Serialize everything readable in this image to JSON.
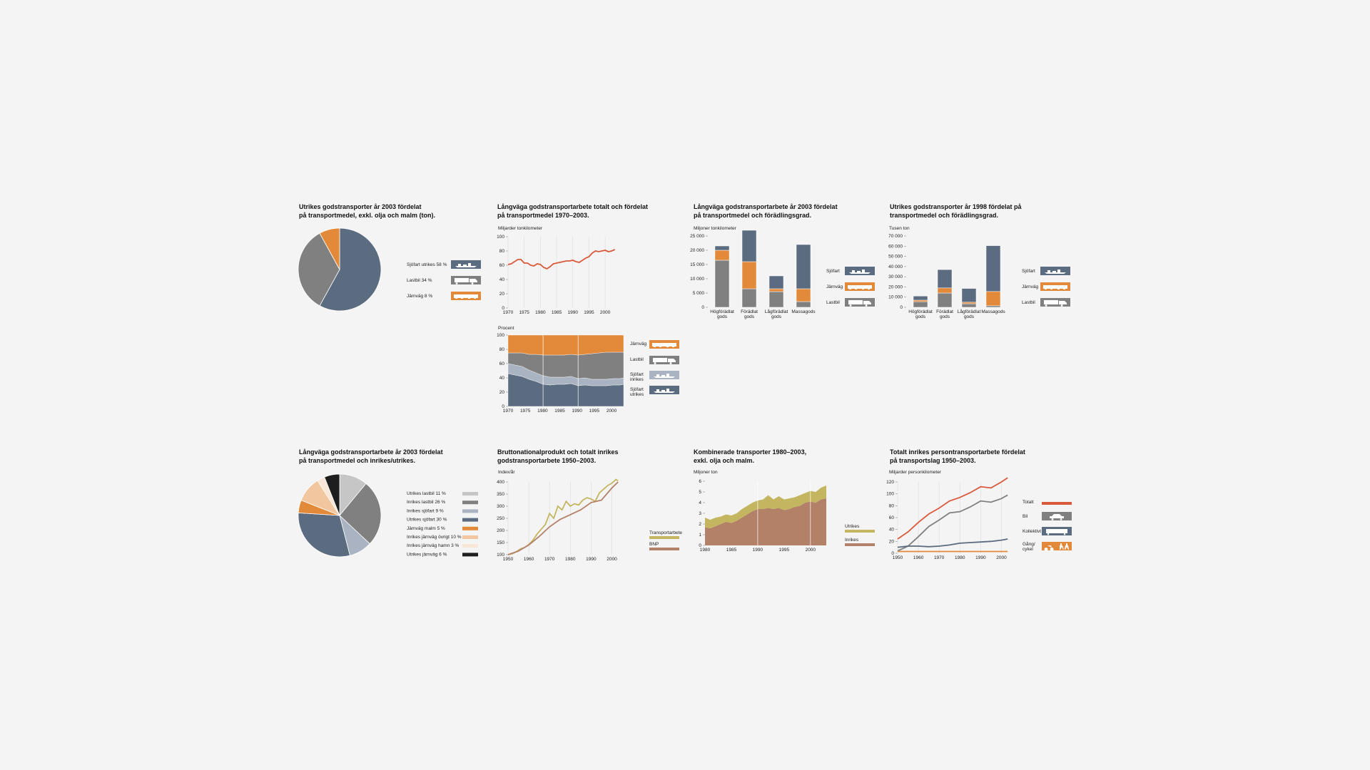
{
  "colors": {
    "navy": "#5b6b80",
    "gray": "#808080",
    "orange": "#e3893a",
    "lightblue": "#aab3c2",
    "red": "#d95a3a",
    "olive": "#c4b660",
    "brown": "#b38068",
    "black": "#1e1e1e",
    "lightgray": "#c6c6c6",
    "peach": "#f2c7a0",
    "cream": "#f8e6d6",
    "vlight": "#dcdcdc"
  },
  "icons": {
    "ship": "ship-icon",
    "truck": "truck-icon",
    "train": "train-icon",
    "car": "car-icon",
    "bus": "bus-icon",
    "bike": "bike-walk-icon"
  },
  "chart_data": [
    {
      "id": "c1",
      "type": "pie",
      "title": "Utrikes godstransporter år 2003 fördelat\npå transportmedel, exkl. olja och malm (ton).",
      "slices": [
        {
          "label": "Sjöfart utrikes 58 %",
          "value": 58,
          "color": "#5b6b80",
          "icon": "ship-icon"
        },
        {
          "label": "Lastbil 34 %",
          "value": 34,
          "color": "#808080",
          "icon": "truck-icon"
        },
        {
          "label": "Järnväg 8 %",
          "value": 8,
          "color": "#e3893a",
          "icon": "train-icon"
        }
      ]
    },
    {
      "id": "c2",
      "type": "line",
      "title": "Långväga godstransportarbete totalt och fördelat\npå transportmedel 1970–2003.",
      "ylabel": "Miljarder tonkilometer",
      "ylim": [
        0,
        100
      ],
      "yticks": [
        "100",
        "80",
        "60",
        "40",
        "20",
        "0"
      ],
      "xticks": [
        "1970",
        "1975",
        "1980",
        "1985",
        "1990",
        "1995",
        "2000"
      ],
      "series": [
        {
          "color": "#d95a3a",
          "x": [
            1970,
            1971,
            1972,
            1973,
            1974,
            1975,
            1976,
            1977,
            1978,
            1979,
            1980,
            1981,
            1982,
            1983,
            1984,
            1985,
            1986,
            1987,
            1988,
            1989,
            1990,
            1991,
            1992,
            1993,
            1994,
            1995,
            1996,
            1997,
            1998,
            1999,
            2000,
            2001,
            2002,
            2003
          ],
          "values": [
            61,
            62,
            65,
            68,
            68,
            63,
            63,
            60,
            59,
            62,
            61,
            57,
            55,
            58,
            62,
            63,
            64,
            65,
            66,
            66,
            67,
            65,
            64,
            67,
            70,
            72,
            77,
            80,
            79,
            80,
            81,
            79,
            80,
            82
          ]
        }
      ]
    },
    {
      "id": "c3",
      "type": "area",
      "ylabel": "Procent",
      "ylim": [
        0,
        100
      ],
      "yticks": [
        "100",
        "80",
        "60",
        "40",
        "20",
        "0"
      ],
      "xticks": [
        "1970",
        "1975",
        "1980",
        "1985",
        "1990",
        "1995",
        "2000"
      ],
      "x": [
        1970,
        1972,
        1974,
        1976,
        1978,
        1980,
        1982,
        1984,
        1986,
        1988,
        1990,
        1992,
        1994,
        1996,
        1998,
        2000,
        2002,
        2003
      ],
      "series": [
        {
          "name": "Sjöfart utrikes",
          "color": "#5b6b80",
          "icon": "ship-icon",
          "values": [
            46,
            44,
            42,
            38,
            35,
            31,
            30,
            31,
            31,
            32,
            29,
            30,
            29,
            29,
            29,
            30,
            30,
            31
          ]
        },
        {
          "name": "Sjöfart inrikes",
          "color": "#aab3c2",
          "icon": "ship-icon",
          "values": [
            14,
            14,
            14,
            13,
            12,
            12,
            11,
            10,
            10,
            10,
            10,
            10,
            9,
            9,
            9,
            9,
            9,
            9
          ]
        },
        {
          "name": "Lastbil",
          "color": "#808080",
          "icon": "truck-icon",
          "values": [
            15,
            17,
            19,
            22,
            26,
            29,
            31,
            31,
            31,
            31,
            33,
            33,
            36,
            37,
            38,
            37,
            37,
            36
          ]
        },
        {
          "name": "Järnväg",
          "color": "#e3893a",
          "icon": "train-icon",
          "values": [
            25,
            25,
            25,
            27,
            27,
            28,
            28,
            28,
            28,
            27,
            28,
            27,
            26,
            25,
            24,
            24,
            24,
            24
          ]
        }
      ]
    },
    {
      "id": "c4",
      "type": "bar",
      "title": "Långväga godstransportarbete år 2003 fördelat\npå transportmedel och förädlingsgrad.",
      "ylabel": "Miljoner tonkilometer",
      "ylim": [
        0,
        25000
      ],
      "yticks": [
        "25 000",
        "20 000",
        "15 000",
        "10 000",
        "5 000",
        "0"
      ],
      "categories": [
        "Högförädlat\ngods",
        "Förädlat\ngods",
        "Lågförädlat\ngods",
        "Massagods"
      ],
      "series": [
        {
          "name": "Lastbil",
          "color": "#808080",
          "icon": "truck-icon",
          "values": [
            16500,
            6500,
            5500,
            2000
          ]
        },
        {
          "name": "Järnväg",
          "color": "#e3893a",
          "icon": "train-icon",
          "values": [
            3500,
            9500,
            1000,
            4500
          ]
        },
        {
          "name": "Sjöfart",
          "color": "#5b6b80",
          "icon": "ship-icon",
          "values": [
            1500,
            11000,
            4500,
            15500
          ]
        }
      ]
    },
    {
      "id": "c5",
      "type": "bar",
      "title": "Utrikes godstransporter år 1998 fördelat på\ntransportmedel och förädlingsgrad.",
      "ylabel": "Tusen ton",
      "ylim": [
        0,
        70000
      ],
      "yticks": [
        "70 000",
        "60 000",
        "50 000",
        "40 000",
        "30 000",
        "20 000",
        "10 000",
        "0"
      ],
      "categories": [
        "Högförädlat\ngods",
        "Förädlat\ngods",
        "Lågförädlat\ngods",
        "Massagods"
      ],
      "series": [
        {
          "name": "Lastbil",
          "color": "#808080",
          "icon": "truck-icon",
          "values": [
            5500,
            14000,
            3500,
            1500
          ]
        },
        {
          "name": "Järnväg",
          "color": "#e3893a",
          "icon": "train-icon",
          "values": [
            1500,
            5000,
            1500,
            14000
          ]
        },
        {
          "name": "Sjöfart",
          "color": "#5b6b80",
          "icon": "ship-icon",
          "values": [
            4000,
            18000,
            13500,
            45000
          ]
        }
      ]
    },
    {
      "id": "c6",
      "type": "pie",
      "title": "Långväga godstransportarbete år 2003 fördelat\npå transportmedel och inrikes/utrikes.",
      "slices": [
        {
          "label": "Utrikes lastbil 11 %",
          "value": 11,
          "color": "#c6c6c6"
        },
        {
          "label": "Inrikes lastbil 26 %",
          "value": 26,
          "color": "#808080"
        },
        {
          "label": "Inrikes sjöfart 9 %",
          "value": 9,
          "color": "#aab3c2"
        },
        {
          "label": "Utrikes sjöfart 30 %",
          "value": 30,
          "color": "#5b6b80"
        },
        {
          "label": "Järnväg malm 5 %",
          "value": 5,
          "color": "#e3893a"
        },
        {
          "label": "Inrikes järnväg övrigt 10 %",
          "value": 10,
          "color": "#f2c7a0"
        },
        {
          "label": "Inrikes järnväg hamn 3 %",
          "value": 3,
          "color": "#f8e6d6"
        },
        {
          "label": "Utrikes järnväg 6 %",
          "value": 6,
          "color": "#1e1e1e"
        }
      ]
    },
    {
      "id": "c7",
      "type": "line",
      "title": "Bruttonationalprodukt och totalt inrikes\ngodstransportarbete 1950–2003.",
      "ylabel": "Index/år",
      "ylim": [
        100,
        400
      ],
      "yticks": [
        "400",
        "350",
        "300",
        "250",
        "200",
        "150",
        "100"
      ],
      "xticks": [
        "1950",
        "1960",
        "1970",
        "1980",
        "1990",
        "2000"
      ],
      "series": [
        {
          "name": "Transportarbete",
          "color": "#c4b660",
          "x": [
            1950,
            1952,
            1954,
            1956,
            1958,
            1960,
            1962,
            1964,
            1966,
            1968,
            1970,
            1972,
            1974,
            1976,
            1978,
            1980,
            1982,
            1984,
            1986,
            1988,
            1990,
            1992,
            1994,
            1996,
            1998,
            2000,
            2002,
            2003
          ],
          "values": [
            100,
            104,
            112,
            124,
            130,
            142,
            160,
            185,
            205,
            225,
            270,
            250,
            300,
            285,
            320,
            300,
            310,
            305,
            325,
            335,
            330,
            320,
            355,
            370,
            385,
            395,
            410,
            405
          ]
        },
        {
          "name": "BNP",
          "color": "#b38068",
          "x": [
            1950,
            1955,
            1960,
            1965,
            1970,
            1975,
            1980,
            1985,
            1990,
            1995,
            2000,
            2003
          ],
          "values": [
            100,
            115,
            140,
            175,
            215,
            245,
            265,
            285,
            315,
            325,
            375,
            400
          ]
        }
      ]
    },
    {
      "id": "c8",
      "type": "area",
      "title": "Kombinerade transporter 1980–2003,\nexkl. olja och malm.",
      "ylabel": "Miljoner ton",
      "ylim": [
        0,
        6
      ],
      "yticks": [
        "6",
        "5",
        "4",
        "3",
        "2",
        "1",
        "0"
      ],
      "xticks": [
        "1980",
        "1985",
        "1990",
        "1995",
        "2000"
      ],
      "x": [
        1980,
        1981,
        1982,
        1983,
        1984,
        1985,
        1986,
        1987,
        1988,
        1989,
        1990,
        1991,
        1992,
        1993,
        1994,
        1995,
        1996,
        1997,
        1998,
        1999,
        2000,
        2001,
        2002,
        2003
      ],
      "series": [
        {
          "name": "Inrikes",
          "color": "#b38068",
          "values": [
            1.7,
            1.6,
            1.8,
            2.0,
            2.2,
            2.1,
            2.3,
            2.6,
            2.9,
            3.2,
            3.4,
            3.4,
            3.5,
            3.4,
            3.5,
            3.3,
            3.4,
            3.6,
            3.7,
            4.0,
            4.1,
            4.0,
            4.3,
            4.4
          ]
        },
        {
          "name": "Utrikes",
          "color": "#c4b660",
          "values": [
            0.9,
            0.8,
            0.8,
            0.7,
            0.7,
            0.7,
            0.7,
            0.8,
            0.8,
            0.8,
            0.8,
            0.9,
            1.2,
            0.9,
            1.1,
            1.0,
            1.0,
            0.9,
            1.0,
            0.9,
            1.0,
            1.0,
            1.1,
            1.2
          ]
        }
      ]
    },
    {
      "id": "c9",
      "type": "line",
      "title": "Totalt inrikes persontransportarbete fördelat\npå transportslag 1950–2003.",
      "ylabel": "Miljarder personkilometer",
      "ylim": [
        0,
        120
      ],
      "yticks": [
        "120",
        "100",
        "80",
        "60",
        "40",
        "20",
        "0"
      ],
      "xticks": [
        "1950",
        "1960",
        "1970",
        "1980",
        "1990",
        "2000"
      ],
      "series": [
        {
          "name": "Totalt",
          "color": "#d95a3a",
          "icon": "",
          "x": [
            1950,
            1955,
            1960,
            1965,
            1970,
            1975,
            1980,
            1985,
            1990,
            1995,
            2000,
            2003
          ],
          "values": [
            24,
            36,
            52,
            66,
            76,
            88,
            94,
            102,
            112,
            110,
            120,
            127
          ]
        },
        {
          "name": "Bil",
          "color": "#808080",
          "icon": "car-icon",
          "x": [
            1950,
            1955,
            1960,
            1965,
            1970,
            1975,
            1980,
            1985,
            1990,
            1995,
            2000,
            2003
          ],
          "values": [
            4,
            12,
            28,
            45,
            56,
            68,
            70,
            78,
            88,
            86,
            92,
            98
          ]
        },
        {
          "name": "Kollektivt",
          "color": "#5b6b80",
          "icon": "bus-icon",
          "x": [
            1950,
            1955,
            1960,
            1965,
            1970,
            1975,
            1980,
            1985,
            1990,
            1995,
            2000,
            2003
          ],
          "values": [
            10,
            12,
            12,
            11,
            12,
            14,
            17,
            18,
            19,
            20,
            22,
            24
          ]
        },
        {
          "name": "Gång/\ncykel",
          "color": "#e3893a",
          "icon": "bike-walk-icon",
          "x": [
            1950,
            1960,
            1970,
            1980,
            1990,
            2000,
            2003
          ],
          "values": [
            3,
            3,
            3,
            3,
            3,
            3,
            3
          ]
        }
      ]
    }
  ]
}
